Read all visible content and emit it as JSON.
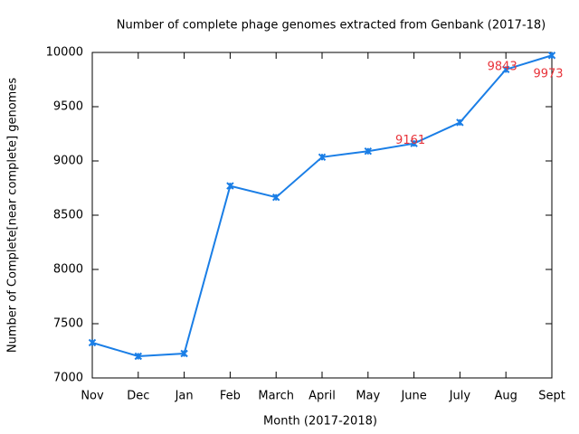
{
  "chart_data": {
    "type": "line",
    "title": "Number of complete phage genomes extracted from Genbank (2017-18)",
    "x_label": "Month (2017-2018)",
    "y_label": "Number of Complete[near complete] genomes",
    "categories": [
      "Nov",
      "Dec",
      "Jan",
      "Feb",
      "March",
      "April",
      "May",
      "June",
      "July",
      "Aug",
      "Sept"
    ],
    "series": [
      {
        "color": "#1a7ee6",
        "values": [
          7325,
          7200,
          7225,
          8770,
          8665,
          9035,
          9090,
          9161,
          9355,
          9843,
          9973
        ],
        "value_labels": [
          null,
          null,
          null,
          null,
          null,
          null,
          null,
          "9161",
          null,
          "9843",
          "9973"
        ],
        "label_color": "#e8333a"
      }
    ],
    "ylim": [
      7000,
      10000
    ],
    "yticks": [
      7000,
      7500,
      8000,
      8500,
      9000,
      9500,
      10000
    ]
  }
}
